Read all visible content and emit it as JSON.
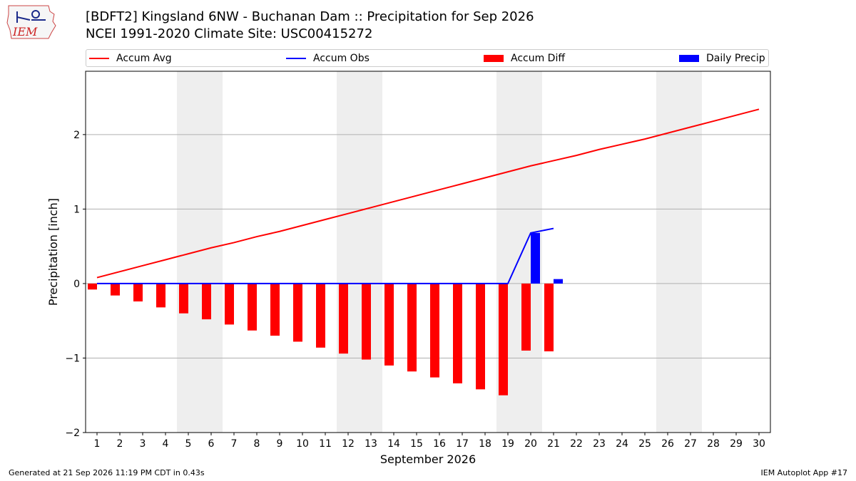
{
  "header": {
    "title_line1": "[BDFT2] Kingsland 6NW - Buchanan Dam :: Precipitation for Sep 2026",
    "title_line2": "NCEI 1991-2020 Climate Site: USC00415272"
  },
  "logo": {
    "text": "IEM"
  },
  "legend": {
    "items": [
      {
        "label": "Accum Avg",
        "kind": "line",
        "color": "#ff0000"
      },
      {
        "label": "Accum Obs",
        "kind": "line",
        "color": "#0000ff"
      },
      {
        "label": "Accum Diff",
        "kind": "bar",
        "color": "#ff0000"
      },
      {
        "label": "Daily Precip",
        "kind": "bar",
        "color": "#0000ff"
      }
    ]
  },
  "footer": {
    "left": "Generated at 21 Sep 2026 11:19 PM CDT in 0.43s",
    "right": "IEM Autoplot App #17"
  },
  "chart_data": {
    "type": "bar",
    "xlabel": "September 2026",
    "ylabel": "Precipitation [inch]",
    "xlim": [
      0.5,
      30.5
    ],
    "ylim": [
      -2,
      2.85
    ],
    "yticks": [
      2,
      1,
      0,
      -1,
      -2
    ],
    "ytick_labels": [
      "2",
      "1",
      "0",
      "−1",
      "−2"
    ],
    "xticks": [
      1,
      2,
      3,
      4,
      5,
      6,
      7,
      8,
      9,
      10,
      11,
      12,
      13,
      14,
      15,
      16,
      17,
      18,
      19,
      20,
      21,
      22,
      23,
      24,
      25,
      26,
      27,
      28,
      29,
      30
    ],
    "grid": "horizontal",
    "weekend_shading": [
      [
        4.5,
        6.5
      ],
      [
        11.5,
        13.5
      ],
      [
        18.5,
        20.5
      ],
      [
        25.5,
        27.5
      ]
    ],
    "colors": {
      "avg": "#ff0000",
      "obs": "#0000ff",
      "diff": "#ff0000",
      "daily": "#0000ff",
      "shade": "#eeeeee"
    },
    "accum_avg": {
      "x": [
        1,
        2,
        3,
        4,
        5,
        6,
        7,
        8,
        9,
        10,
        11,
        12,
        13,
        14,
        15,
        16,
        17,
        18,
        19,
        20,
        21,
        22,
        23,
        24,
        25,
        26,
        27,
        28,
        29,
        30
      ],
      "values": [
        0.08,
        0.16,
        0.24,
        0.32,
        0.4,
        0.48,
        0.55,
        0.63,
        0.7,
        0.78,
        0.86,
        0.94,
        1.02,
        1.1,
        1.18,
        1.26,
        1.34,
        1.42,
        1.5,
        1.58,
        1.65,
        1.72,
        1.8,
        1.87,
        1.94,
        2.02,
        2.1,
        2.18,
        2.26,
        2.34
      ]
    },
    "accum_obs": {
      "x": [
        1,
        2,
        3,
        4,
        5,
        6,
        7,
        8,
        9,
        10,
        11,
        12,
        13,
        14,
        15,
        16,
        17,
        18,
        19,
        20,
        21
      ],
      "values": [
        0,
        0,
        0,
        0,
        0,
        0,
        0,
        0,
        0,
        0,
        0,
        0,
        0,
        0,
        0,
        0,
        0,
        0,
        0,
        0.68,
        0.74
      ]
    },
    "accum_diff": {
      "x": [
        1,
        2,
        3,
        4,
        5,
        6,
        7,
        8,
        9,
        10,
        11,
        12,
        13,
        14,
        15,
        16,
        17,
        18,
        19,
        20,
        21
      ],
      "values": [
        -0.08,
        -0.16,
        -0.24,
        -0.32,
        -0.4,
        -0.48,
        -0.55,
        -0.63,
        -0.7,
        -0.78,
        -0.86,
        -0.94,
        -1.02,
        -1.1,
        -1.18,
        -1.26,
        -1.34,
        -1.42,
        -1.5,
        -0.9,
        -0.91
      ]
    },
    "daily_precip": {
      "x": [
        1,
        2,
        3,
        4,
        5,
        6,
        7,
        8,
        9,
        10,
        11,
        12,
        13,
        14,
        15,
        16,
        17,
        18,
        19,
        20,
        21
      ],
      "values": [
        0,
        0,
        0,
        0,
        0,
        0,
        0,
        0,
        0,
        0,
        0,
        0,
        0,
        0,
        0,
        0,
        0,
        0,
        0,
        0.68,
        0.06
      ]
    }
  }
}
